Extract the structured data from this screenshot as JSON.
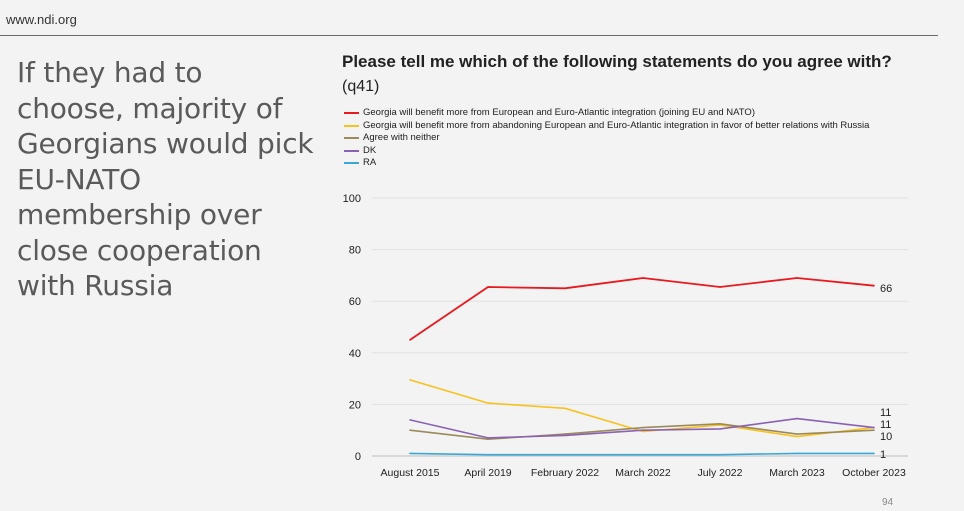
{
  "site": {
    "url": "www.ndi.org"
  },
  "headline": "If they had to choose, majority of Georgians would pick EU-NATO membership over close cooperation with Russia",
  "page_number": "94",
  "chart_data": {
    "type": "line",
    "title": "Please tell me which of the following statements do you agree with?",
    "subtitle": "(q41)",
    "categories": [
      "August 2015",
      "April 2019",
      "February 2022",
      "March 2022",
      "July 2022",
      "March 2023",
      "October 2023"
    ],
    "ylim": [
      0,
      100
    ],
    "yticks": [
      0,
      20,
      40,
      60,
      80,
      100
    ],
    "grid": true,
    "legend_position": "top-left",
    "series": [
      {
        "name": "Georgia will benefit more from European and Euro-Atlantic integration (joining EU and NATO)",
        "color": "#e8191f",
        "values": [
          45,
          65.5,
          65,
          69,
          65.5,
          69,
          66
        ],
        "end_label": "66"
      },
      {
        "name": "Georgia will benefit more from abandoning European and Euro-Atlantic integration in favor of better relations with Russia",
        "color": "#f7c21f",
        "values": [
          29.5,
          20.5,
          18.5,
          9.5,
          12,
          7.5,
          11
        ],
        "end_label": "11"
      },
      {
        "name": "Agree with neither",
        "color": "#9a8a5c",
        "values": [
          10,
          6.5,
          8.5,
          11,
          12.5,
          8.5,
          10
        ],
        "end_label": "10"
      },
      {
        "name": "DK",
        "color": "#8a62b3",
        "values": [
          14,
          7,
          8,
          10,
          10.5,
          14.5,
          11
        ],
        "end_label": "11"
      },
      {
        "name": "RA",
        "color": "#3aa8d6",
        "values": [
          1,
          0.5,
          0.5,
          0.5,
          0.5,
          1,
          1
        ],
        "end_label": "1"
      }
    ]
  }
}
